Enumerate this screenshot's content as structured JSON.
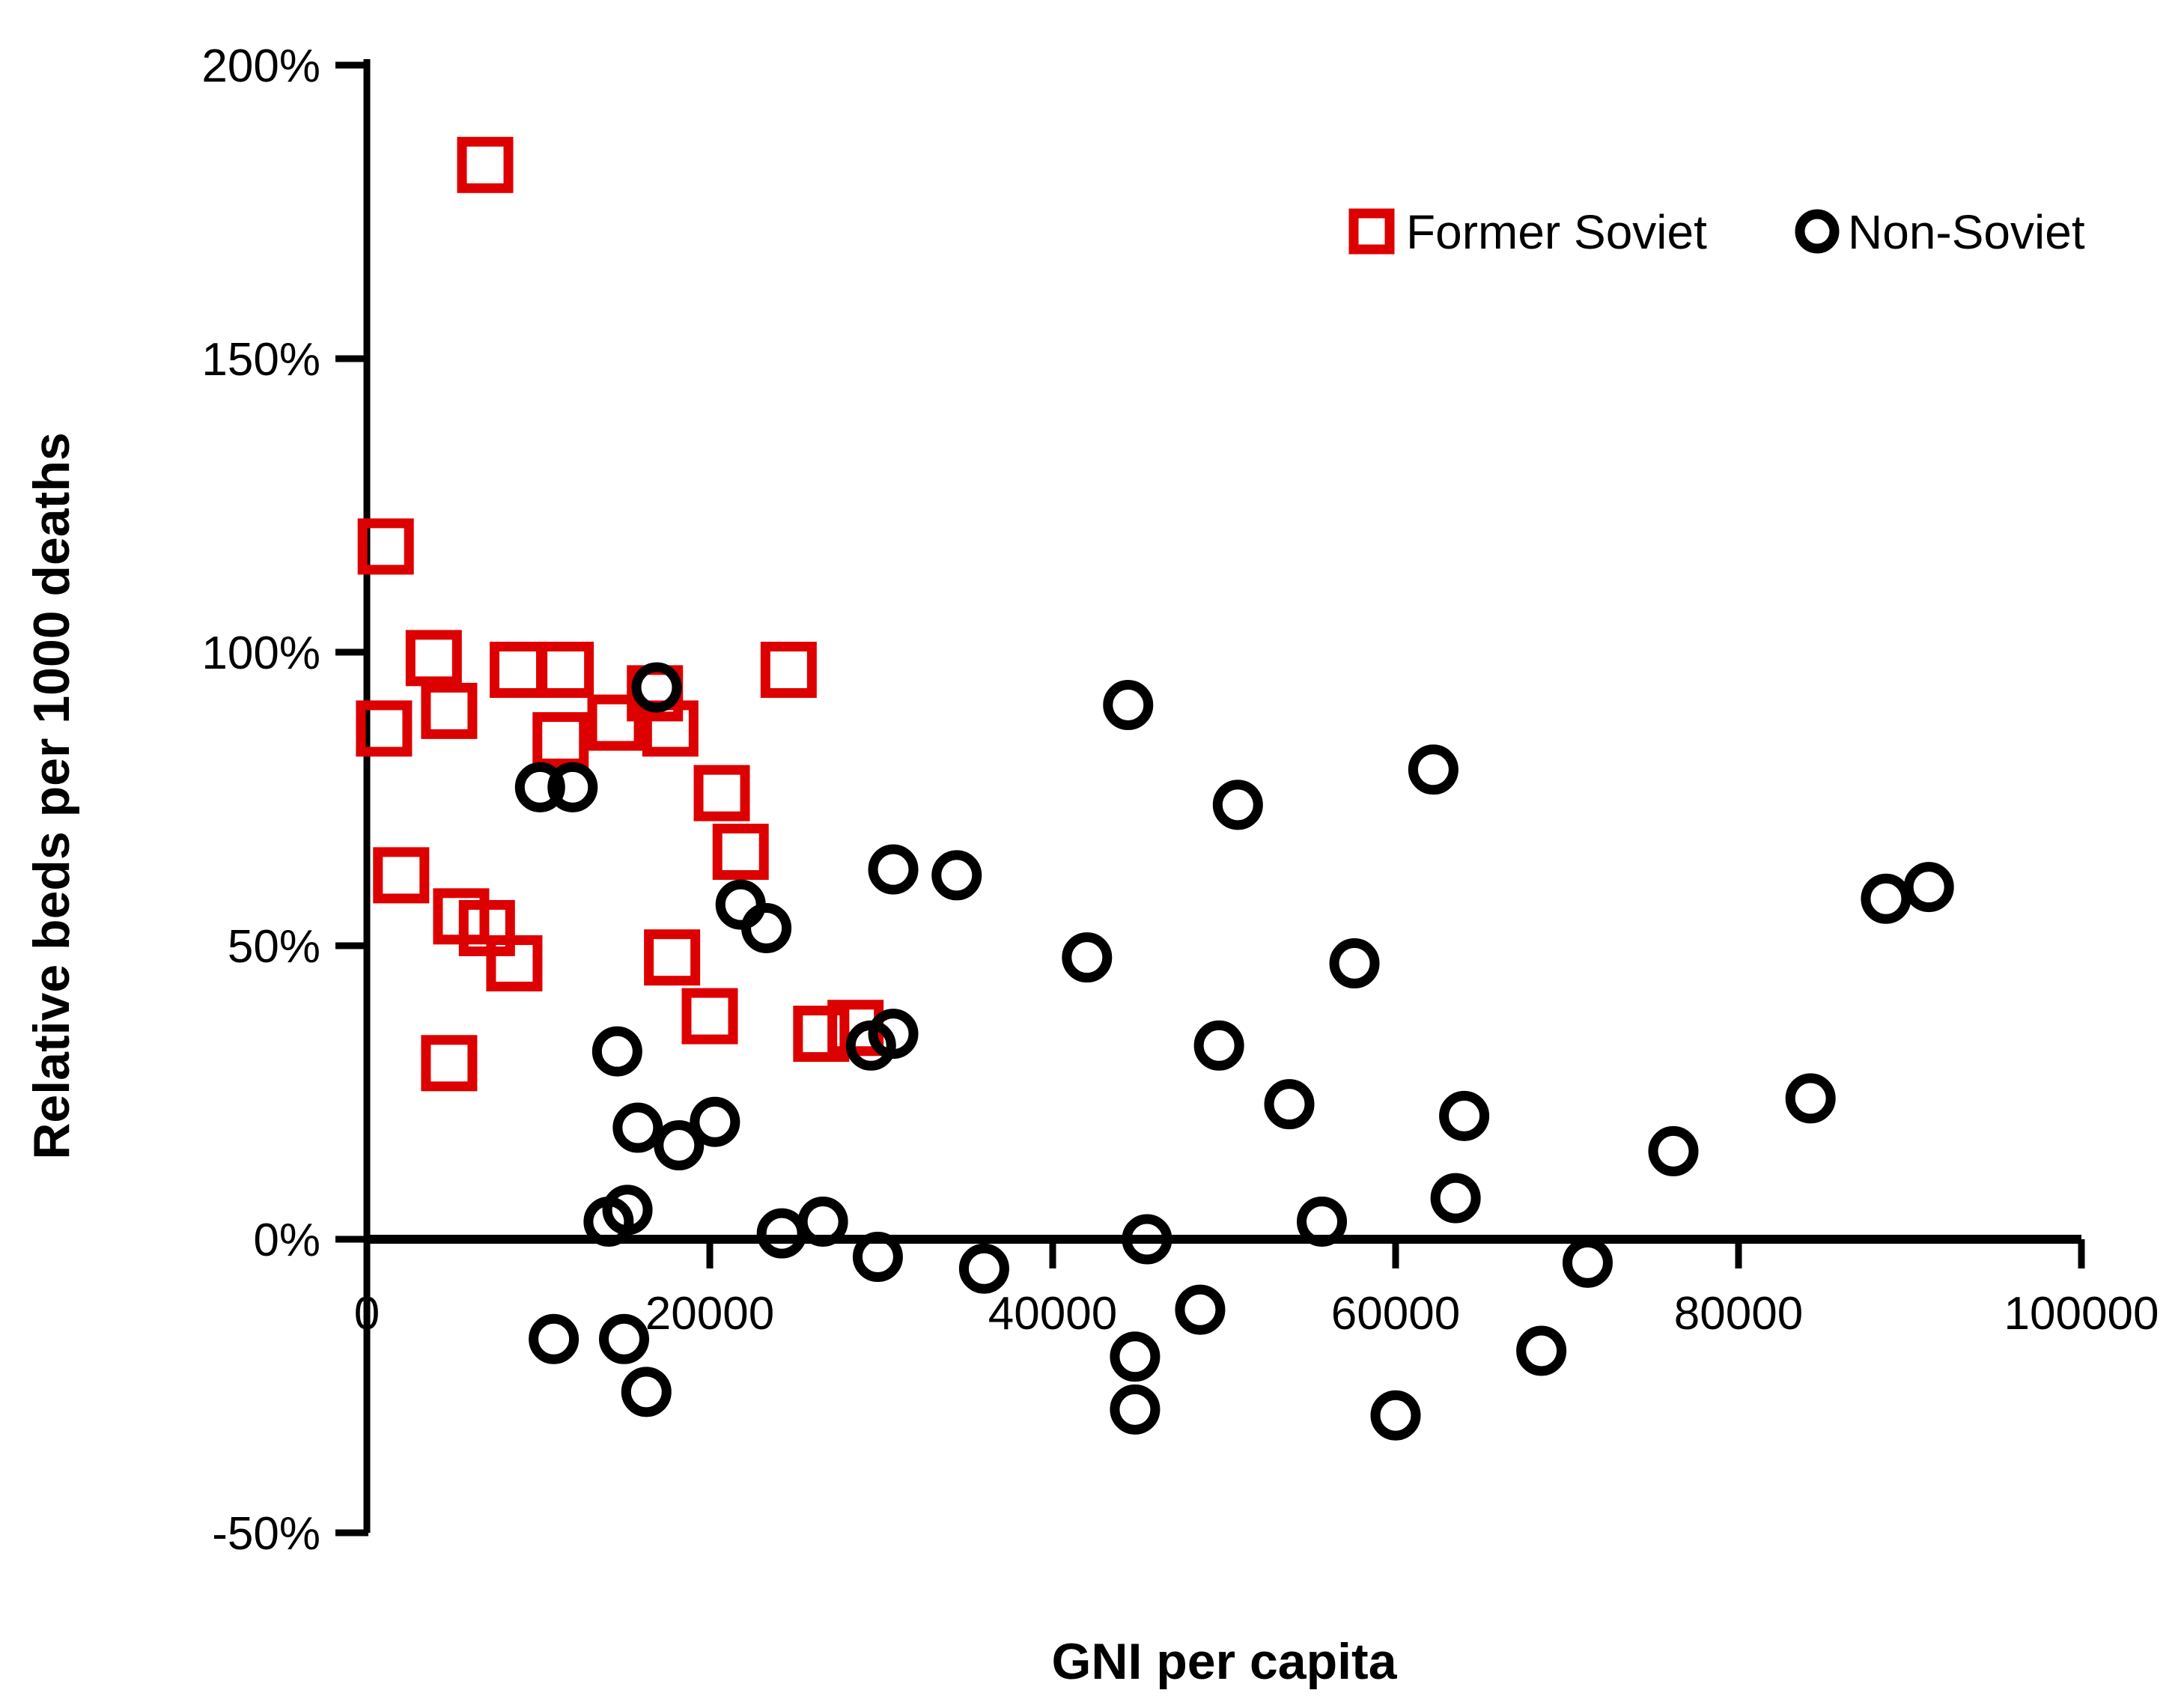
{
  "chart_data": {
    "type": "scatter",
    "title": "",
    "xlabel": "GNI per capita",
    "ylabel": "Relative beds per 1000 deaths",
    "xlim": [
      0,
      100000
    ],
    "ylim_percent": [
      -50,
      200
    ],
    "grid": false,
    "legend_position": "top-right-inside",
    "x_tick_values": [
      0,
      20000,
      40000,
      60000,
      80000,
      100000
    ],
    "x_tick_labels": [
      "0",
      "20000",
      "40000",
      "60000",
      "80000",
      "100000"
    ],
    "y_tick_values_percent": [
      200,
      150,
      100,
      50,
      0,
      -50
    ],
    "y_tick_labels": [
      "200%",
      "150%",
      "100%",
      "50%",
      "0%",
      "-50%"
    ],
    "series": [
      {
        "name": "Former Soviet",
        "marker": "open-square",
        "color": "#dd0000",
        "points": [
          [
            6900,
            183
          ],
          [
            1100,
            118
          ],
          [
            3900,
            99
          ],
          [
            8800,
            97
          ],
          [
            11600,
            97
          ],
          [
            24600,
            97
          ],
          [
            16800,
            93
          ],
          [
            4800,
            90
          ],
          [
            14500,
            88
          ],
          [
            1000,
            87
          ],
          [
            17700,
            87
          ],
          [
            11300,
            85
          ],
          [
            20700,
            76
          ],
          [
            21800,
            66
          ],
          [
            2000,
            62
          ],
          [
            5500,
            55
          ],
          [
            7000,
            53
          ],
          [
            17800,
            48
          ],
          [
            8600,
            47
          ],
          [
            20000,
            38
          ],
          [
            28500,
            36
          ],
          [
            26500,
            35
          ],
          [
            4800,
            30
          ]
        ]
      },
      {
        "name": "Non-Soviet",
        "marker": "open-circle",
        "color": "#000000",
        "points": [
          [
            16900,
            94
          ],
          [
            44400,
            91
          ],
          [
            62200,
            80
          ],
          [
            10100,
            77
          ],
          [
            12000,
            77
          ],
          [
            50800,
            74
          ],
          [
            30700,
            63
          ],
          [
            34400,
            62
          ],
          [
            91100,
            60
          ],
          [
            88600,
            58
          ],
          [
            21800,
            57
          ],
          [
            23300,
            53
          ],
          [
            42000,
            48
          ],
          [
            57600,
            47
          ],
          [
            30700,
            35
          ],
          [
            29400,
            33
          ],
          [
            49700,
            33
          ],
          [
            14600,
            32
          ],
          [
            84200,
            24
          ],
          [
            53800,
            23
          ],
          [
            64000,
            21
          ],
          [
            20300,
            20
          ],
          [
            15800,
            19
          ],
          [
            18200,
            16
          ],
          [
            76200,
            15
          ],
          [
            63500,
            7
          ],
          [
            15200,
            5
          ],
          [
            14100,
            3
          ],
          [
            26600,
            3
          ],
          [
            55700,
            3
          ],
          [
            24200,
            1
          ],
          [
            45500,
            0
          ],
          [
            29800,
            -3
          ],
          [
            71200,
            -4
          ],
          [
            36000,
            -5
          ],
          [
            48600,
            -12
          ],
          [
            10900,
            -17
          ],
          [
            15000,
            -17
          ],
          [
            68500,
            -19
          ],
          [
            44800,
            -20
          ],
          [
            16300,
            -26
          ],
          [
            44800,
            -29
          ],
          [
            60000,
            -30
          ]
        ]
      }
    ]
  },
  "legend": {
    "former_soviet_label": "Former Soviet",
    "non_soviet_label": "Non-Soviet"
  },
  "colors": {
    "former_soviet": "#dd0000",
    "non_soviet": "#000000",
    "axis": "#000000",
    "background": "#ffffff"
  }
}
